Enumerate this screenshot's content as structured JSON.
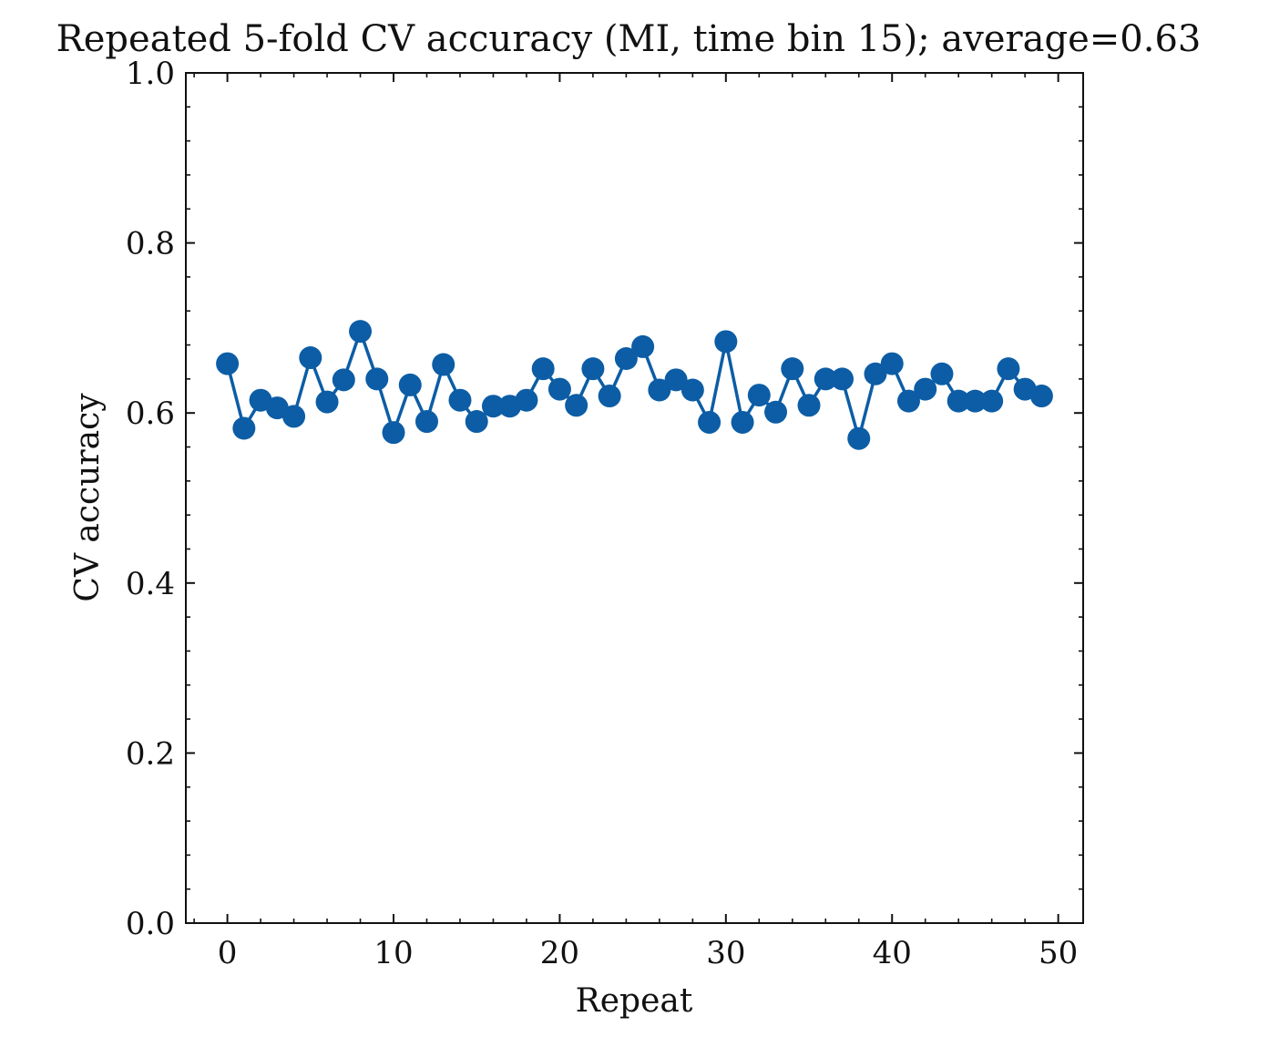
{
  "chart_data": {
    "type": "line",
    "title": "Repeated 5-fold CV accuracy (MI, time bin 15); average=0.63",
    "xlabel": "Repeat",
    "ylabel": "CV accuracy",
    "xlim": [
      -2.5,
      51.5
    ],
    "ylim": [
      0.0,
      1.0
    ],
    "x_ticks": [
      0,
      10,
      20,
      30,
      40,
      50
    ],
    "x_tick_labels": [
      "0",
      "10",
      "20",
      "30",
      "40",
      "50"
    ],
    "y_ticks": [
      0.0,
      0.2,
      0.4,
      0.6,
      0.8,
      1.0
    ],
    "y_tick_labels": [
      "0.0",
      "0.2",
      "0.4",
      "0.6",
      "0.8",
      "1.0"
    ],
    "grid": false,
    "marker": "circle",
    "series": [
      {
        "color": "#0c5da5",
        "x": [
          0,
          1,
          2,
          3,
          4,
          5,
          6,
          7,
          8,
          9,
          10,
          11,
          12,
          13,
          14,
          15,
          16,
          17,
          18,
          19,
          20,
          21,
          22,
          23,
          24,
          25,
          26,
          27,
          28,
          29,
          30,
          31,
          32,
          33,
          34,
          35,
          36,
          37,
          38,
          39,
          40,
          41,
          42,
          43,
          44,
          45,
          46,
          47,
          48,
          49
        ],
        "values": [
          0.658,
          0.582,
          0.615,
          0.606,
          0.596,
          0.665,
          0.613,
          0.639,
          0.696,
          0.64,
          0.577,
          0.633,
          0.59,
          0.657,
          0.615,
          0.59,
          0.608,
          0.608,
          0.615,
          0.652,
          0.628,
          0.609,
          0.652,
          0.62,
          0.664,
          0.678,
          0.627,
          0.639,
          0.627,
          0.589,
          0.684,
          0.589,
          0.621,
          0.601,
          0.652,
          0.609,
          0.64,
          0.64,
          0.57,
          0.646,
          0.658,
          0.614,
          0.628,
          0.646,
          0.614,
          0.614,
          0.614,
          0.652,
          0.628,
          0.62
        ]
      }
    ]
  }
}
